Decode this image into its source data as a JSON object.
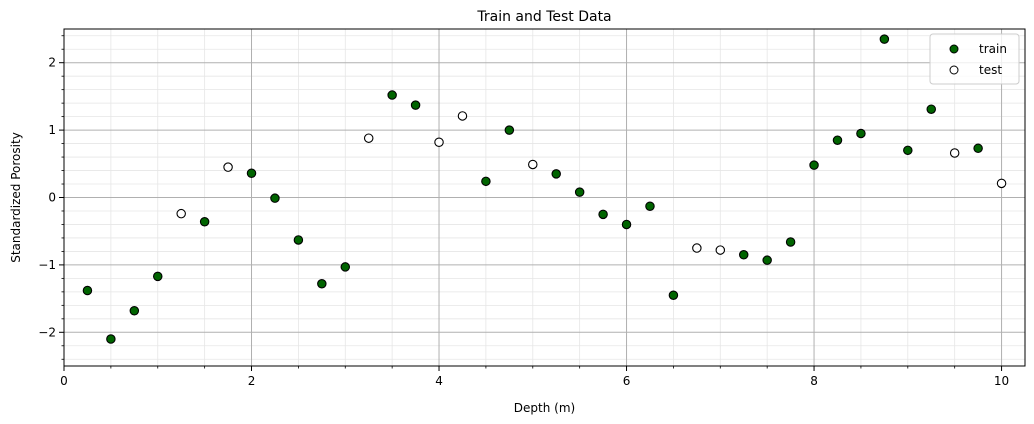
{
  "chart_data": {
    "type": "scatter",
    "title": "Train and Test Data",
    "xlabel": "Depth (m)",
    "ylabel": "Standardized Porosity",
    "xlim": [
      0,
      10.25
    ],
    "ylim": [
      -2.5,
      2.5
    ],
    "xticks": [
      0,
      2,
      4,
      6,
      8,
      10
    ],
    "yticks": [
      -2,
      -1,
      0,
      1,
      2
    ],
    "x_minor_step": 0.5,
    "y_minor_step": 0.2,
    "grid": true,
    "legend_position": "top-right",
    "series": [
      {
        "name": "train",
        "marker_fill": "#006400",
        "marker_edge": "#000000",
        "points": [
          [
            0.25,
            -1.38
          ],
          [
            0.5,
            -2.1
          ],
          [
            0.75,
            -1.68
          ],
          [
            1.0,
            -1.17
          ],
          [
            1.5,
            -0.36
          ],
          [
            2.0,
            0.36
          ],
          [
            2.25,
            -0.01
          ],
          [
            2.5,
            -0.63
          ],
          [
            2.75,
            -1.28
          ],
          [
            3.0,
            -1.03
          ],
          [
            3.5,
            1.52
          ],
          [
            3.75,
            1.37
          ],
          [
            4.5,
            0.24
          ],
          [
            4.75,
            1.0
          ],
          [
            5.25,
            0.35
          ],
          [
            5.5,
            0.08
          ],
          [
            5.75,
            -0.25
          ],
          [
            6.0,
            -0.4
          ],
          [
            6.25,
            -0.13
          ],
          [
            6.5,
            -1.45
          ],
          [
            7.25,
            -0.85
          ],
          [
            7.5,
            -0.93
          ],
          [
            7.75,
            -0.66
          ],
          [
            8.0,
            0.48
          ],
          [
            8.25,
            0.85
          ],
          [
            8.5,
            0.95
          ],
          [
            8.75,
            2.35
          ],
          [
            9.0,
            0.7
          ],
          [
            9.25,
            1.31
          ],
          [
            9.75,
            0.73
          ]
        ]
      },
      {
        "name": "test",
        "marker_fill": "#ffffff",
        "marker_edge": "#000000",
        "points": [
          [
            1.25,
            -0.24
          ],
          [
            1.75,
            0.45
          ],
          [
            3.25,
            0.88
          ],
          [
            4.0,
            0.82
          ],
          [
            4.25,
            1.21
          ],
          [
            5.0,
            0.49
          ],
          [
            6.75,
            -0.75
          ],
          [
            7.0,
            -0.78
          ],
          [
            9.5,
            0.66
          ],
          [
            10.0,
            0.21
          ]
        ]
      }
    ]
  }
}
